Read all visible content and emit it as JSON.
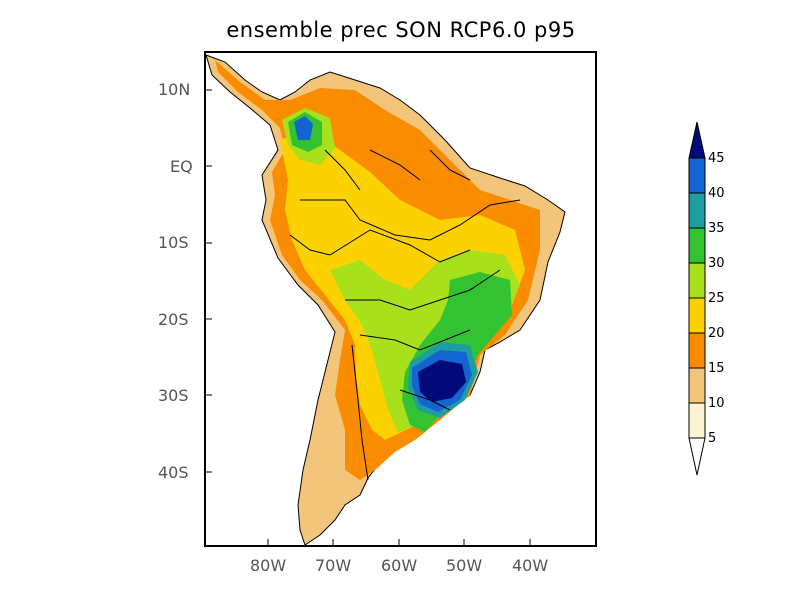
{
  "title": "ensemble prec SON RCP6.0 p95",
  "y_ticks": [
    "10N",
    "EQ",
    "10S",
    "20S",
    "30S",
    "40S"
  ],
  "x_ticks": [
    "80W",
    "70W",
    "60W",
    "50W",
    "40W"
  ],
  "colorbar": {
    "levels": [
      "5",
      "10",
      "15",
      "20",
      "25",
      "30",
      "35",
      "40",
      "45"
    ],
    "colors": [
      "#fbf3d2",
      "#f2c57b",
      "#fa8c00",
      "#fbd200",
      "#a8e01c",
      "#32c232",
      "#1e9ea0",
      "#1464d2",
      "#000a78"
    ]
  }
}
